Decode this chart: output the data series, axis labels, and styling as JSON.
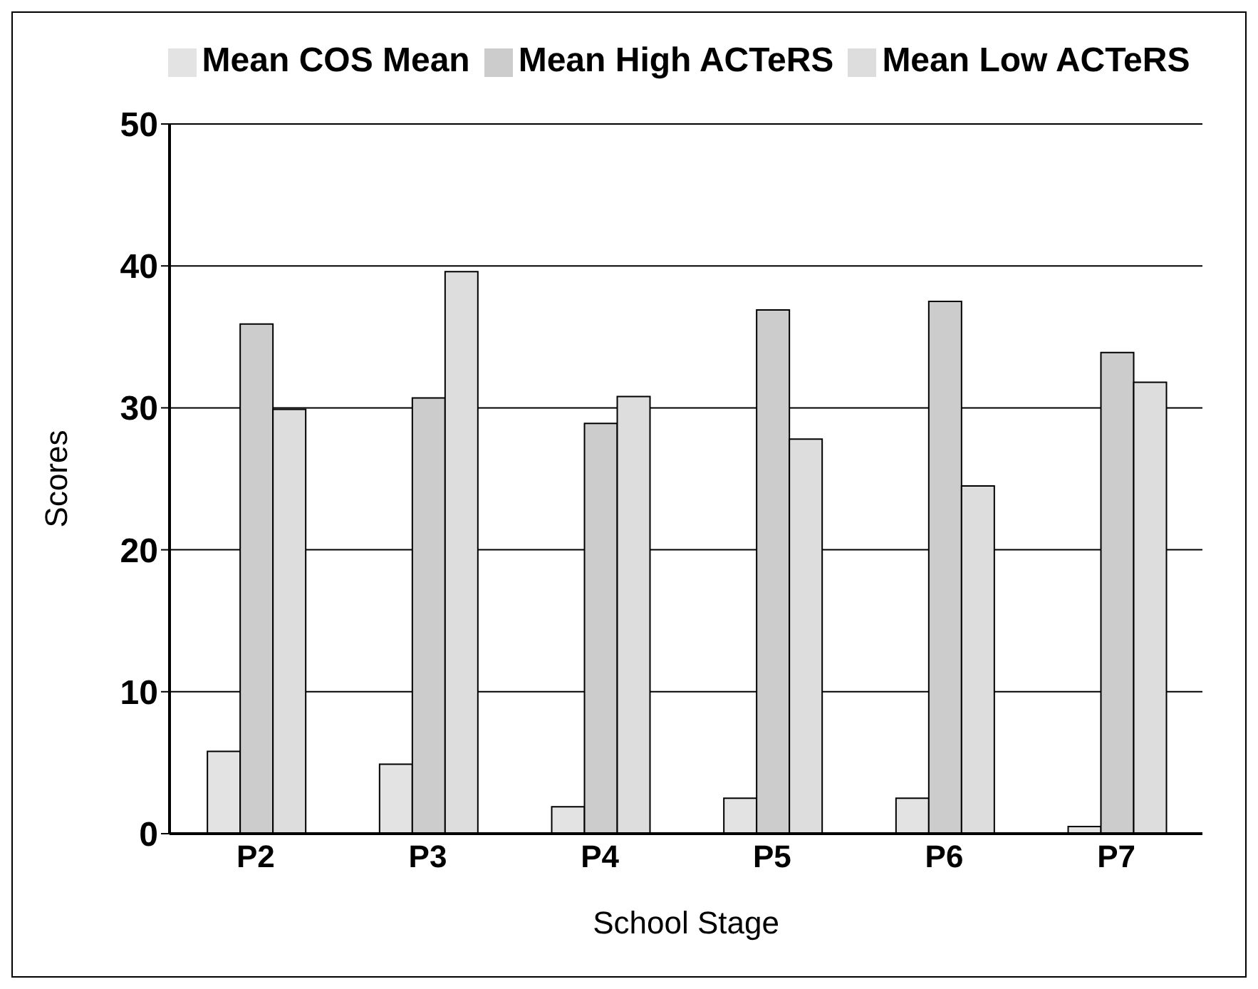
{
  "chart_data": {
    "type": "bar",
    "xlabel": "School Stage",
    "ylabel": "Scores",
    "categories": [
      "P2",
      "P3",
      "P4",
      "P5",
      "P6",
      "P7"
    ],
    "series": [
      {
        "name": "Mean COS Mean",
        "color": "#e3e3e3",
        "values": [
          5.8,
          4.9,
          1.9,
          2.5,
          2.5,
          0.5
        ]
      },
      {
        "name": "Mean High ACTeRS",
        "color": "#cccccc",
        "values": [
          35.9,
          30.7,
          28.9,
          36.9,
          37.5,
          33.9
        ]
      },
      {
        "name": "Mean Low ACTeRS",
        "color": "#dddddd",
        "values": [
          29.9,
          39.6,
          30.8,
          27.8,
          24.5,
          31.8
        ]
      }
    ],
    "ylim": [
      0,
      50
    ],
    "yticks": [
      0,
      10,
      20,
      30,
      40,
      50
    ],
    "grid": "y",
    "legend": "top"
  }
}
